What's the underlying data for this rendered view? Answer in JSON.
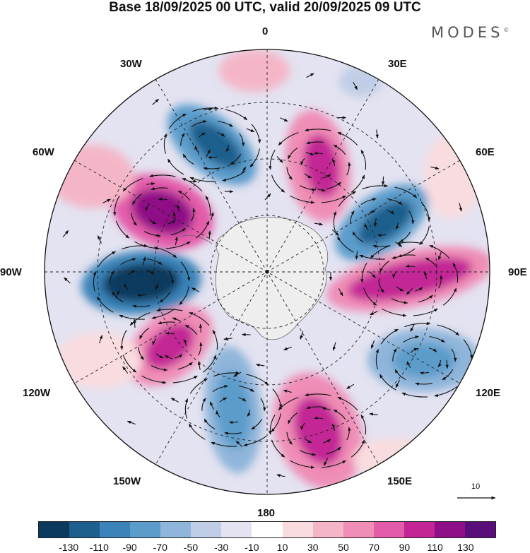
{
  "title": "Base 18/09/2025 00 UTC, valid 20/09/2025 09 UTC",
  "brand": "MODES",
  "brand_mark": "©",
  "longitude_labels": {
    "lon_0": "0",
    "lon_30e": "30E",
    "lon_60e": "60E",
    "lon_90e": "90E",
    "lon_120e": "120E",
    "lon_150e": "150E",
    "lon_180": "180",
    "lon_150w": "150W",
    "lon_120w": "120W",
    "lon_90w": "90W",
    "lon_60w": "60W",
    "lon_30w": "30W"
  },
  "reference_vector": {
    "label": "10"
  },
  "colorbar": {
    "colors": [
      "#0c3a5e",
      "#1d5f8d",
      "#3b83b8",
      "#5c9ccb",
      "#8fb5da",
      "#bfcde6",
      "#e4e3f1",
      "#ffffff",
      "#f9dcdf",
      "#f4b6c7",
      "#ef8db6",
      "#e35ca9",
      "#c32595",
      "#8f0f86",
      "#580f7c"
    ],
    "ticks": [
      "-130",
      "-110",
      "-90",
      "-70",
      "-50",
      "-30",
      "-10",
      "10",
      "30",
      "50",
      "70",
      "90",
      "110",
      "130"
    ]
  }
}
